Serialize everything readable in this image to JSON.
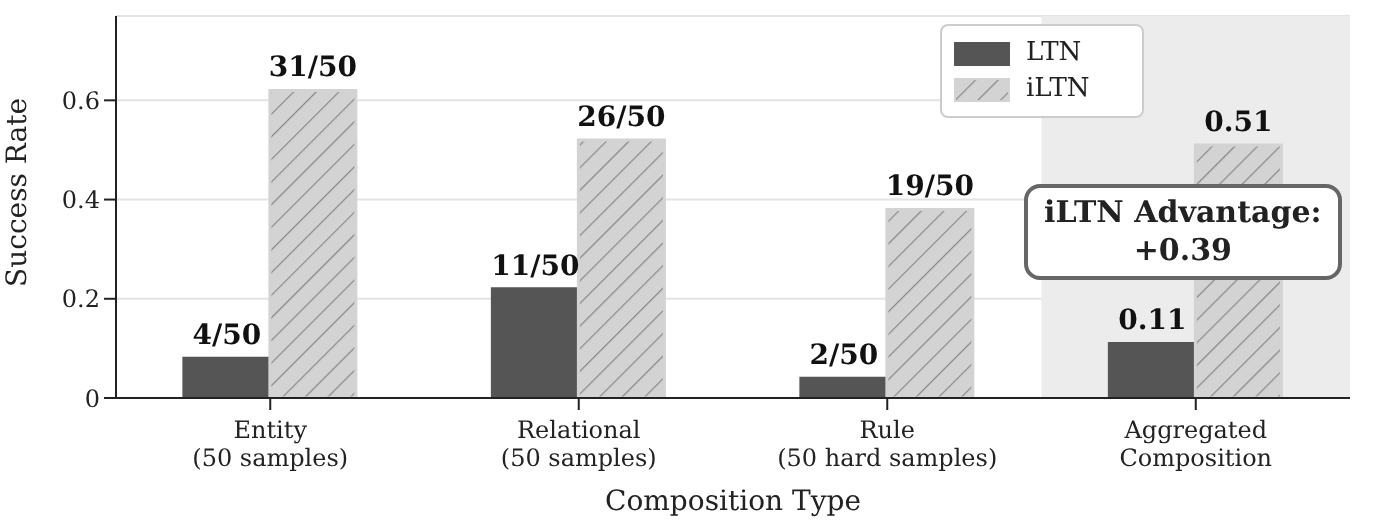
{
  "chart_data": {
    "type": "bar",
    "xlabel": "Composition Type",
    "ylabel": "Success Rate",
    "categories": [
      "Entity\n(50 samples)",
      "Relational\n(50 samples)",
      "Rule\n(50 hard samples)",
      "Aggregated\nComposition"
    ],
    "series": [
      {
        "name": "LTN",
        "color": "#555555",
        "values": [
          0.08,
          0.22,
          0.04,
          0.11
        ],
        "value_labels": [
          "4/50",
          "11/50",
          "2/50",
          "0.11"
        ]
      },
      {
        "name": "iLTN",
        "color": "#d3d3d3",
        "values": [
          0.62,
          0.52,
          0.38,
          0.51
        ],
        "value_labels": [
          "31/50",
          "26/50",
          "19/50",
          "0.51"
        ]
      }
    ],
    "ylim": [
      0,
      0.77
    ],
    "yticks": [
      0,
      0.2,
      0.4,
      0.6
    ],
    "grid": "y",
    "legend": "top right",
    "bands": [
      {
        "axis": "x",
        "from": "Aggregated\nComposition",
        "to": "Aggregated\nComposition",
        "color": "#ececec"
      }
    ],
    "annotations": [
      "iLTN Advantage:\n+0.39"
    ]
  }
}
